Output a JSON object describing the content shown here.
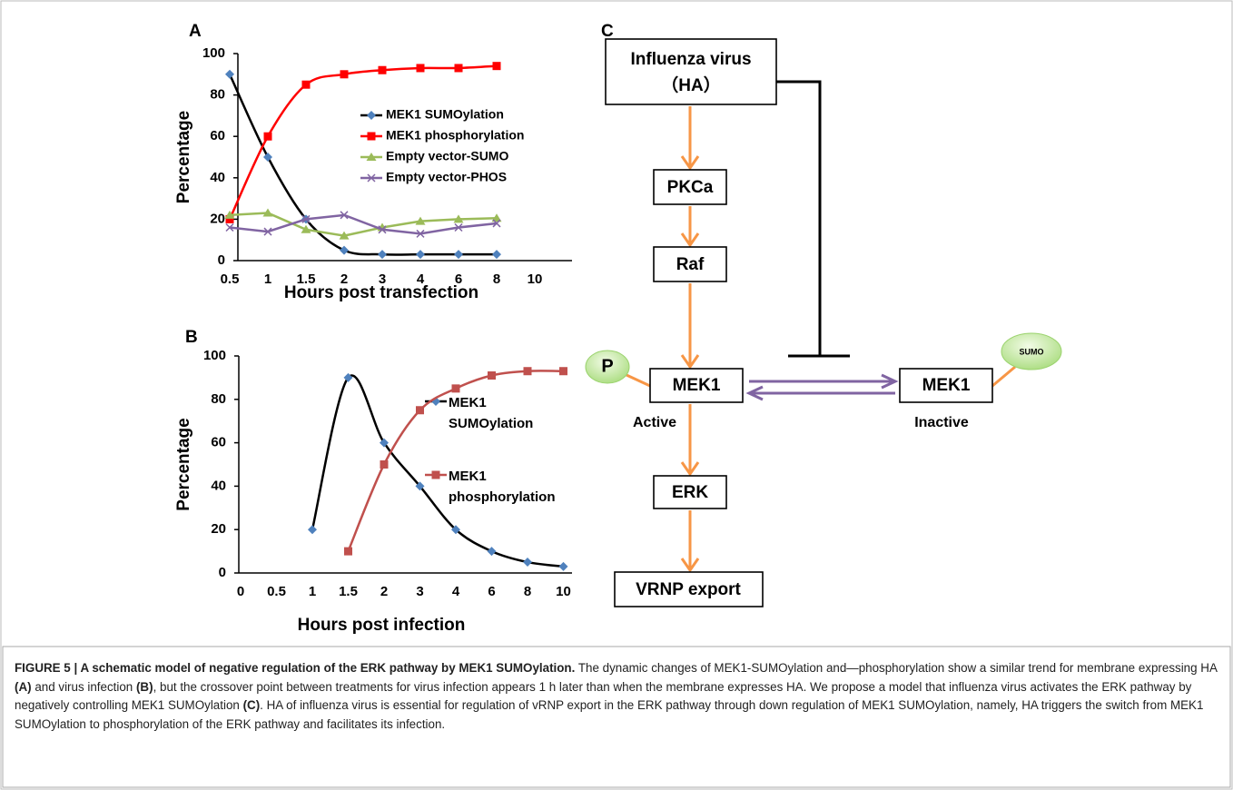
{
  "panel_labels": [
    "A",
    "B",
    "C"
  ],
  "chart_data": [
    {
      "type": "line",
      "x_label": "Hours post transfection",
      "y_label": "Percentage",
      "categories": [
        "0.5",
        "1",
        "1.5",
        "2",
        "3",
        "4",
        "6",
        "8",
        "10"
      ],
      "ylim": [
        0,
        100
      ],
      "yticks": [
        0,
        20,
        40,
        60,
        80,
        100
      ],
      "series": [
        {
          "name": "MEK1 SUMOylation",
          "color": "#000000",
          "marker": "diamond",
          "marker_color": "#4f81bd",
          "smooth": true,
          "values": [
            90,
            50,
            20,
            5,
            3,
            3,
            3,
            3,
            null
          ]
        },
        {
          "name": "MEK1 phosphorylation",
          "color": "#ff0000",
          "marker": "square",
          "marker_color": "#ff0000",
          "smooth": true,
          "values": [
            20,
            60,
            85,
            90,
            92,
            93,
            93,
            94,
            null
          ]
        },
        {
          "name": "Empty vector-SUMO",
          "color": "#9bbb59",
          "marker": "triangle",
          "marker_color": "#9bbb59",
          "smooth": false,
          "values": [
            22,
            23,
            15,
            12,
            16,
            19,
            20,
            20.5,
            null
          ]
        },
        {
          "name": "Empty vector-PHOS",
          "color": "#8064a2",
          "marker": "x",
          "marker_color": "#8064a2",
          "smooth": false,
          "values": [
            16,
            14,
            20,
            22,
            15,
            13,
            16,
            18,
            null
          ]
        }
      ]
    },
    {
      "type": "line",
      "x_label": "Hours post infection",
      "y_label": "Percentage",
      "categories": [
        "0",
        "0.5",
        "1",
        "1.5",
        "2",
        "3",
        "4",
        "6",
        "8",
        "10"
      ],
      "ylim": [
        0,
        100
      ],
      "yticks": [
        0,
        20,
        40,
        60,
        80,
        100
      ],
      "series": [
        {
          "name": "MEK1 SUMOylation",
          "color": "#000000",
          "marker": "diamond",
          "marker_color": "#4f81bd",
          "smooth": true,
          "values": [
            null,
            null,
            20,
            90,
            60,
            40,
            20,
            10,
            5,
            3
          ]
        },
        {
          "name": "MEK1 phosphorylation",
          "color": "#c0504d",
          "marker": "square",
          "marker_color": "#c0504d",
          "smooth": true,
          "values": [
            null,
            null,
            null,
            10,
            50,
            75,
            85,
            91,
            93,
            93
          ]
        }
      ]
    }
  ],
  "diagram": {
    "nodes": [
      {
        "label": "Influenza virus",
        "sublabel": "（HA）"
      },
      {
        "label": "PKCa"
      },
      {
        "label": "Raf"
      },
      {
        "label": "MEK1"
      },
      {
        "label": "MEK1"
      },
      {
        "label": "ERK"
      },
      {
        "label": "VRNP export"
      }
    ],
    "phospho": "P",
    "sumo": "SUMO",
    "active": "Active",
    "inactive": "Inactive"
  },
  "caption": {
    "title": "FIGURE 5 | A schematic model of negative regulation of the ERK pathway by MEK1 SUMOylation.",
    "parts": [
      " The dynamic changes of MEK1-SUMOylation and—phosphorylation show a similar trend for membrane expressing HA ",
      "(A)",
      " and virus infection ",
      "(B)",
      ", but the crossover point between treatments for virus infection appears 1 h later than when the membrane expresses HA. We propose a model that influenza virus activates the ERK pathway by negatively controlling MEK1 SUMOylation ",
      "(C)",
      ". HA of influenza virus is essential for regulation of vRNP export in the ERK pathway through down regulation of MEK1 SUMOylation, namely, HA triggers the switch from MEK1 SUMOylation to phosphorylation of the ERK pathway and facilitates its infection."
    ]
  }
}
